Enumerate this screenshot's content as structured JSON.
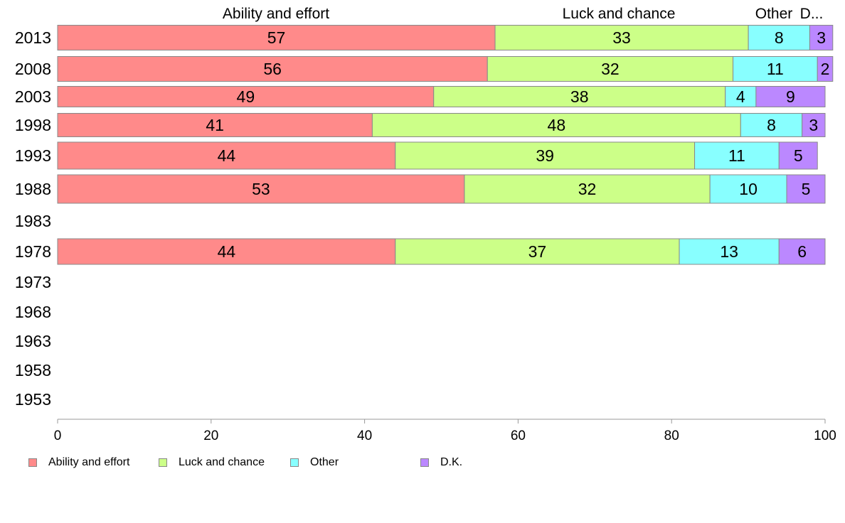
{
  "chart_data": {
    "type": "bar",
    "orientation": "horizontal",
    "stacked": true,
    "title": "",
    "xlabel": "",
    "ylabel": "",
    "xlim": [
      0,
      100
    ],
    "x_ticks": [
      "0",
      "20",
      "40",
      "60",
      "80",
      "100"
    ],
    "categories": [
      "2013",
      "2008",
      "2003",
      "1998",
      "1993",
      "1988",
      "1983",
      "1978",
      "1973",
      "1968",
      "1963",
      "1958",
      "1953"
    ],
    "top_labels": [
      "Ability and effort",
      "Luck and chance",
      "Other",
      "D..."
    ],
    "series": [
      {
        "name": "Ability and effort",
        "color": "#ff8a8a",
        "values": [
          57,
          56,
          49,
          41,
          44,
          53,
          null,
          44,
          null,
          null,
          null,
          null,
          null
        ]
      },
      {
        "name": "Luck and chance",
        "color": "#ccff88",
        "values": [
          33,
          32,
          38,
          48,
          39,
          32,
          null,
          37,
          null,
          null,
          null,
          null,
          null
        ]
      },
      {
        "name": "Other",
        "color": "#88ffff",
        "values": [
          8,
          11,
          4,
          8,
          11,
          10,
          null,
          13,
          null,
          null,
          null,
          null,
          null
        ]
      },
      {
        "name": "D.K.",
        "color": "#bb88ff",
        "values": [
          3,
          2,
          9,
          3,
          5,
          5,
          null,
          6,
          null,
          null,
          null,
          null,
          null
        ]
      }
    ],
    "legend": {
      "position": "bottom-left"
    }
  }
}
